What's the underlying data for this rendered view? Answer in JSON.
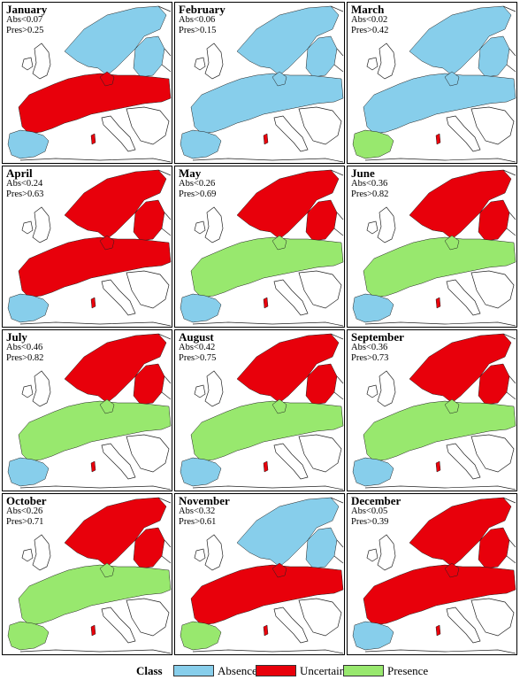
{
  "colors": {
    "absence": "#87ceeb",
    "uncertain": "#e8000b",
    "presence": "#98e86e",
    "outline": "#222222"
  },
  "panels": [
    {
      "month": "January",
      "abs": "Abs<0.07",
      "pres": "Pres>0.25",
      "north": "absence",
      "central": "uncertain",
      "south": "absence"
    },
    {
      "month": "February",
      "abs": "Abs<0.06",
      "pres": "Pres>0.15",
      "north": "absence",
      "central": "absence",
      "south": "absence"
    },
    {
      "month": "March",
      "abs": "Abs<0.02",
      "pres": "Pres>0.42",
      "north": "absence",
      "central": "absence",
      "south": "presence"
    },
    {
      "month": "April",
      "abs": "Abs<0.24",
      "pres": "Pres>0.63",
      "north": "uncertain",
      "central": "uncertain",
      "south": "absence"
    },
    {
      "month": "May",
      "abs": "Abs<0.26",
      "pres": "Pres>0.69",
      "north": "uncertain",
      "central": "presence",
      "south": "absence"
    },
    {
      "month": "June",
      "abs": "Abs<0.36",
      "pres": "Pres>0.82",
      "north": "uncertain",
      "central": "presence",
      "south": "absence"
    },
    {
      "month": "July",
      "abs": "Abs<0.46",
      "pres": "Pres>0.82",
      "north": "uncertain",
      "central": "presence",
      "south": "absence"
    },
    {
      "month": "August",
      "abs": "Abs<0.42",
      "pres": "Pres>0.75",
      "north": "uncertain",
      "central": "presence",
      "south": "absence"
    },
    {
      "month": "September",
      "abs": "Abs<0.36",
      "pres": "Pres>0.73",
      "north": "uncertain",
      "central": "presence",
      "south": "absence"
    },
    {
      "month": "October",
      "abs": "Abs<0.26",
      "pres": "Pres>0.71",
      "north": "uncertain",
      "central": "presence",
      "south": "presence"
    },
    {
      "month": "November",
      "abs": "Abs<0.32",
      "pres": "Pres>0.61",
      "north": "absence",
      "central": "uncertain",
      "south": "presence"
    },
    {
      "month": "December",
      "abs": "Abs<0.05",
      "pres": "Pres>0.39",
      "north": "uncertain",
      "central": "uncertain",
      "south": "absence"
    }
  ],
  "legend": {
    "title": "Class",
    "items": [
      {
        "label": "Absence",
        "color": "#87ceeb"
      },
      {
        "label": "Uncertain",
        "color": "#e8000b"
      },
      {
        "label": "Presence",
        "color": "#98e86e"
      }
    ]
  }
}
